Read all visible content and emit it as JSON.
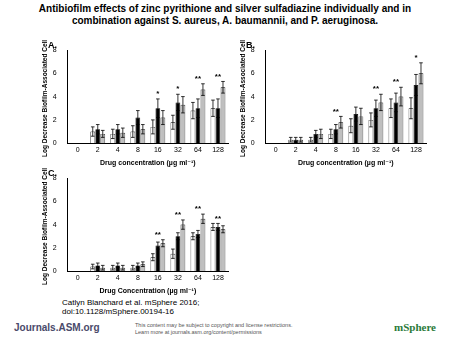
{
  "title": "Antibiofilm effects of zinc pyrithione and silver sulfadiazine individually and in combination against S. aureus, A. baumannii, and P. aeruginosa.",
  "chart_data": [
    {
      "type": "bar",
      "panel": "A.",
      "x_label": "Drug concentration (µg ml⁻¹)",
      "y_label": "Log Decrease Biofilm-Associated Cells",
      "categories": [
        "0",
        "2",
        "4",
        "8",
        "16",
        "32",
        "64",
        "128"
      ],
      "series": [
        {
          "color": "#ffffff",
          "values": [
            0,
            1.0,
            0.8,
            1.0,
            1.4,
            1.8,
            2.8,
            3.0
          ],
          "errors": [
            0,
            0.4,
            0.4,
            0.5,
            0.6,
            0.6,
            0.7,
            0.7
          ]
        },
        {
          "color": "#000000",
          "values": [
            0,
            1.2,
            1.2,
            2.2,
            3.0,
            3.5,
            3.0,
            3.0
          ],
          "errors": [
            0,
            0.4,
            0.4,
            0.6,
            0.8,
            0.7,
            0.8,
            0.8
          ]
        },
        {
          "color": "#bfbfbf",
          "values": [
            0,
            0.8,
            0.9,
            1.2,
            2.2,
            3.3,
            4.6,
            4.8
          ],
          "errors": [
            0,
            0.3,
            0.4,
            0.4,
            0.6,
            0.7,
            0.5,
            0.5
          ]
        }
      ],
      "ylim": [
        0,
        8
      ],
      "yticks": [
        0,
        2,
        4,
        6,
        8
      ],
      "grid": false,
      "annotations": [
        {
          "category": "16",
          "text": "*"
        },
        {
          "category": "32",
          "text": "*"
        },
        {
          "category": "64",
          "text": "**"
        },
        {
          "category": "128",
          "text": "**"
        }
      ]
    },
    {
      "type": "bar",
      "panel": "B.",
      "x_label": "Drug concentration (µg ml⁻¹)",
      "y_label": "Log Decrease Biofilm-Associated Cells",
      "categories": [
        "0",
        "2",
        "4",
        "8",
        "16",
        "32",
        "64",
        "128"
      ],
      "series": [
        {
          "color": "#ffffff",
          "values": [
            0,
            0.3,
            0.3,
            0.8,
            1.5,
            2.0,
            3.0,
            3.0
          ],
          "errors": [
            0,
            0.2,
            0.2,
            0.4,
            0.6,
            0.6,
            0.8,
            0.9
          ]
        },
        {
          "color": "#000000",
          "values": [
            0,
            0.3,
            0.8,
            1.2,
            2.5,
            3.0,
            3.5,
            5.0
          ],
          "errors": [
            0,
            0.2,
            0.3,
            0.4,
            0.6,
            0.7,
            0.8,
            0.9
          ]
        },
        {
          "color": "#bfbfbf",
          "values": [
            0,
            0.3,
            0.8,
            1.8,
            2.3,
            3.5,
            4.0,
            6.0
          ],
          "errors": [
            0,
            0.2,
            0.4,
            0.5,
            0.7,
            0.7,
            0.8,
            0.9
          ]
        }
      ],
      "ylim": [
        0,
        8
      ],
      "yticks": [
        0,
        2,
        4,
        6,
        8
      ],
      "grid": false,
      "annotations": [
        {
          "category": "8",
          "text": "**"
        },
        {
          "category": "32",
          "text": "**"
        },
        {
          "category": "64",
          "text": "**"
        },
        {
          "category": "128",
          "text": "*"
        }
      ]
    },
    {
      "type": "bar",
      "panel": "C.",
      "x_label": "Drug Concentration (µg ml⁻¹)",
      "y_label": "Log Decrease Biofilm-Associated Cells",
      "categories": [
        "0",
        "2",
        "4",
        "8",
        "16",
        "32",
        "64",
        "128"
      ],
      "series": [
        {
          "color": "#ffffff",
          "values": [
            0,
            0.4,
            0.3,
            0.3,
            1.2,
            1.5,
            3.0,
            3.8
          ],
          "errors": [
            0,
            0.2,
            0.2,
            0.2,
            0.3,
            0.4,
            0.3,
            0.3
          ]
        },
        {
          "color": "#000000",
          "values": [
            0,
            0.5,
            0.5,
            0.5,
            2.2,
            3.0,
            3.2,
            3.8
          ],
          "errors": [
            0,
            0.2,
            0.2,
            0.2,
            0.3,
            0.3,
            0.3,
            0.3
          ]
        },
        {
          "color": "#bfbfbf",
          "values": [
            0,
            0.3,
            0.3,
            0.6,
            2.4,
            4.0,
            4.5,
            3.6
          ],
          "errors": [
            0,
            0.2,
            0.2,
            0.2,
            0.3,
            0.4,
            0.4,
            0.3
          ]
        }
      ],
      "ylim": [
        0,
        8
      ],
      "yticks": [
        0,
        2,
        4,
        6,
        8
      ],
      "grid": false,
      "annotations": [
        {
          "category": "16",
          "text": "**"
        },
        {
          "category": "32",
          "text": "**"
        },
        {
          "category": "64",
          "text": "**"
        },
        {
          "category": "128",
          "text": "**"
        }
      ]
    }
  ],
  "citation": [
    "Catlyn Blanchard et al. mSphere 2016;",
    "doi:10.1128/mSphere.00194-16"
  ],
  "footer": {
    "journal": "Journals.ASM.org",
    "rights": [
      "This content may be subject to copyright and license restrictions.",
      "Learn more at journals.asm.org/content/permissions"
    ],
    "brand": "mSphere"
  }
}
